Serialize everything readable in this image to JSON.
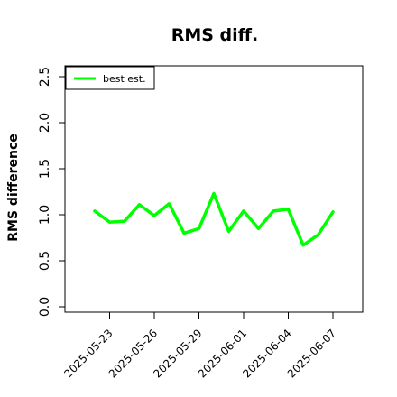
{
  "chart_data": {
    "type": "line",
    "title": "RMS diff.",
    "xlabel": "",
    "ylabel": "RMS difference",
    "ylim": [
      0,
      2.6
    ],
    "y_ticks": [
      "0.0",
      "0.5",
      "1.0",
      "1.5",
      "2.0",
      "2.5"
    ],
    "x_range": [
      "2025-05-20",
      "2025-06-09"
    ],
    "x_ticks": [
      "2025-05-23",
      "2025-05-26",
      "2025-05-29",
      "2025-06-01",
      "2025-06-04",
      "2025-06-07"
    ],
    "grid": false,
    "legend_position": "top-left",
    "series": [
      {
        "name": "best est.",
        "color": "#00ff00",
        "x": [
          "2025-05-22",
          "2025-05-23",
          "2025-05-24",
          "2025-05-25",
          "2025-05-26",
          "2025-05-27",
          "2025-05-28",
          "2025-05-29",
          "2025-05-30",
          "2025-05-31",
          "2025-06-01",
          "2025-06-02",
          "2025-06-03",
          "2025-06-04",
          "2025-06-05",
          "2025-06-06",
          "2025-06-07"
        ],
        "values": [
          1.04,
          0.92,
          0.93,
          1.11,
          0.99,
          1.12,
          0.8,
          0.85,
          1.23,
          0.82,
          1.04,
          0.85,
          1.04,
          1.06,
          0.67,
          0.78,
          1.03
        ]
      }
    ]
  }
}
